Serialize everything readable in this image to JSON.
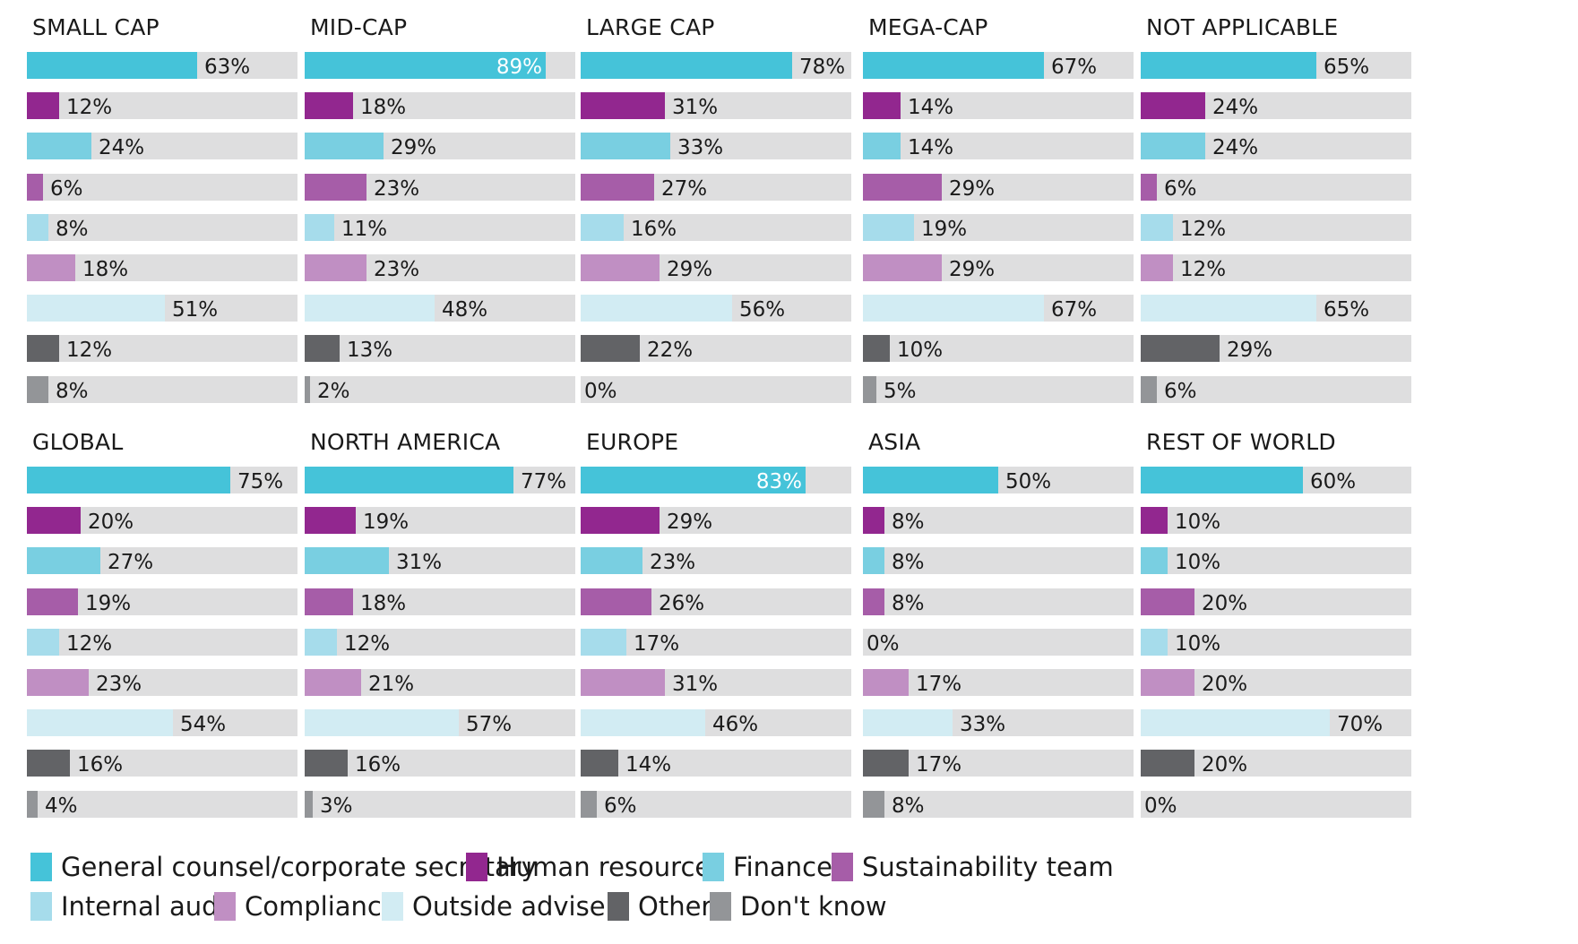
{
  "chart_data": {
    "type": "bar",
    "orientation": "horizontal",
    "value_max": 100,
    "categories": [
      "General counsel/corporate secretary",
      "Human resources",
      "Finance",
      "Sustainability team",
      "Internal audit",
      "Compliance",
      "Outside advisers",
      "Other",
      "Don't know"
    ],
    "colors": [
      "#45c3d9",
      "#92278f",
      "#79cfe1",
      "#a65da8",
      "#a6dceb",
      "#c08fc3",
      "#d2ecf3",
      "#626366",
      "#939598"
    ],
    "panels": [
      {
        "title": "SMALL CAP",
        "values": [
          63,
          12,
          24,
          6,
          8,
          18,
          51,
          12,
          8
        ],
        "labels": [
          "63%",
          "12%",
          "24%",
          "6%",
          "8%",
          "18%",
          "51%",
          "12%",
          "8%"
        ]
      },
      {
        "title": "MID-CAP",
        "values": [
          89,
          18,
          29,
          23,
          11,
          23,
          48,
          13,
          2
        ],
        "labels": [
          "89%",
          "18%",
          "29%",
          "23%",
          "11%",
          "23%",
          "48%",
          "13%",
          "2%"
        ]
      },
      {
        "title": "LARGE CAP",
        "values": [
          78,
          31,
          33,
          27,
          16,
          29,
          56,
          22,
          0
        ],
        "labels": [
          "78%",
          "31%",
          "33%",
          "27%",
          "16%",
          "29%",
          "56%",
          "22%",
          "0%"
        ]
      },
      {
        "title": "MEGA-CAP",
        "values": [
          67,
          14,
          14,
          29,
          19,
          29,
          67,
          10,
          5
        ],
        "labels": [
          "67%",
          "14%",
          "14%",
          "29%",
          "19%",
          "29%",
          "67%",
          "10%",
          "5%"
        ]
      },
      {
        "title": "NOT APPLICABLE",
        "values": [
          65,
          24,
          24,
          6,
          12,
          12,
          65,
          29,
          6
        ],
        "labels": [
          "65%",
          "24%",
          "24%",
          "6%",
          "12%",
          "12%",
          "65%",
          "29%",
          "6%"
        ]
      },
      {
        "title": "GLOBAL",
        "values": [
          75,
          20,
          27,
          19,
          12,
          23,
          54,
          16,
          4
        ],
        "labels": [
          "75%",
          "20%",
          "27%",
          "19%",
          "12%",
          "23%",
          "54%",
          "16%",
          "4%"
        ]
      },
      {
        "title": "NORTH AMERICA",
        "values": [
          77,
          19,
          31,
          18,
          12,
          21,
          57,
          16,
          3
        ],
        "labels": [
          "77%",
          "19%",
          "31%",
          "18%",
          "12%",
          "21%",
          "57%",
          "16%",
          "3%"
        ]
      },
      {
        "title": "EUROPE",
        "values": [
          83,
          29,
          23,
          26,
          17,
          31,
          46,
          14,
          6
        ],
        "labels": [
          "83%",
          "29%",
          "23%",
          "26%",
          "17%",
          "31%",
          "46%",
          "14%",
          "6%"
        ]
      },
      {
        "title": "ASIA",
        "values": [
          50,
          8,
          8,
          8,
          0,
          17,
          33,
          17,
          8
        ],
        "labels": [
          "50%",
          "8%",
          "8%",
          "8%",
          "0%",
          "17%",
          "33%",
          "17%",
          "8%"
        ]
      },
      {
        "title": "REST OF WORLD",
        "values": [
          60,
          10,
          10,
          20,
          10,
          20,
          70,
          20,
          0
        ],
        "labels": [
          "60%",
          "10%",
          "10%",
          "20%",
          "10%",
          "20%",
          "70%",
          "20%",
          "0%"
        ]
      }
    ],
    "legend": {
      "placement": "bottom",
      "entries": [
        "General counsel/corporate secretary",
        "Human resources",
        "Finance",
        "Sustainability team",
        "Internal audit",
        "Compliance",
        "Outside advisers",
        "Other",
        "Don't know"
      ]
    }
  }
}
